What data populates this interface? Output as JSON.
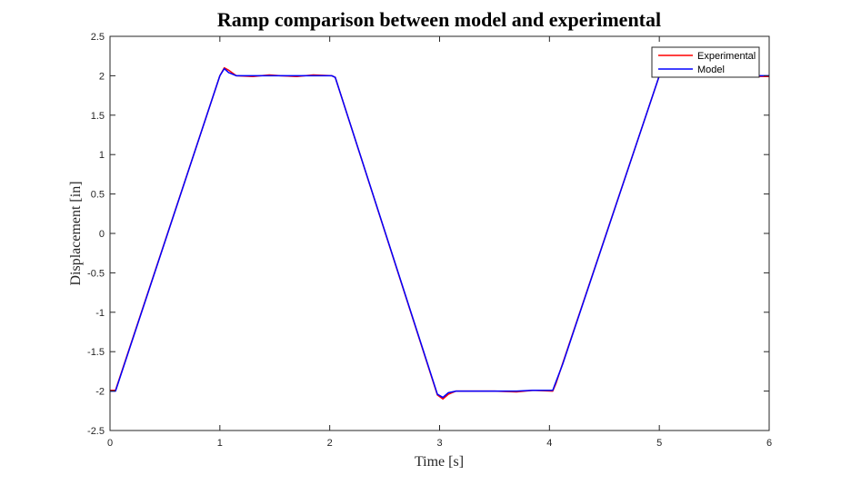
{
  "chart_data": {
    "type": "line",
    "title": "Ramp comparison between model and experimental",
    "xlabel": "Time [s]",
    "ylabel": "Displacement [in]",
    "xlim": [
      0,
      6
    ],
    "ylim": [
      -2.5,
      2.5
    ],
    "xticks": [
      0,
      1,
      2,
      3,
      4,
      5,
      6
    ],
    "xtick_labels": [
      "0",
      "1",
      "2",
      "3",
      "4",
      "5",
      "6"
    ],
    "yticks": [
      -2.5,
      -2,
      -1.5,
      -1,
      -0.5,
      0,
      0.5,
      1,
      1.5,
      2,
      2.5
    ],
    "ytick_labels": [
      "-2.5",
      "-2",
      "-1.5",
      "-1",
      "-0.5",
      "0",
      "0.5",
      "1",
      "1.5",
      "2",
      "2.5"
    ],
    "grid": false,
    "legend_position": "top-right",
    "series": [
      {
        "name": "Experimental",
        "color": "#ff0000",
        "x": [
          0,
          0.05,
          1.0,
          1.04,
          1.08,
          1.15,
          1.3,
          1.45,
          1.55,
          1.7,
          1.85,
          2.02,
          2.05,
          2.98,
          3.03,
          3.08,
          3.15,
          3.3,
          3.5,
          3.7,
          3.85,
          4.03,
          4.06,
          4.12,
          5.0,
          5.5,
          6.0
        ],
        "y": [
          -1.99,
          -1.99,
          2.0,
          2.1,
          2.07,
          2.0,
          1.99,
          2.01,
          2.0,
          1.99,
          2.01,
          2.0,
          1.98,
          -2.05,
          -2.1,
          -2.04,
          -2.0,
          -2.0,
          -2.0,
          -2.01,
          -1.99,
          -2.0,
          -1.9,
          -1.65,
          2.0,
          2.0,
          1.99
        ]
      },
      {
        "name": "Model",
        "color": "#0000ff",
        "x": [
          0,
          0.05,
          1.0,
          1.04,
          1.08,
          1.15,
          1.3,
          1.5,
          1.7,
          1.85,
          2.02,
          2.05,
          2.98,
          3.03,
          3.08,
          3.15,
          3.3,
          3.5,
          3.7,
          3.85,
          4.03,
          4.06,
          4.12,
          5.0,
          5.5,
          6.0
        ],
        "y": [
          -2.0,
          -2.0,
          2.0,
          2.09,
          2.04,
          2.0,
          2.0,
          2.0,
          2.0,
          2.0,
          2.0,
          1.98,
          -2.04,
          -2.08,
          -2.02,
          -2.0,
          -2.0,
          -2.0,
          -2.0,
          -1.99,
          -1.99,
          -1.88,
          -1.66,
          2.0,
          2.0,
          2.0
        ]
      }
    ]
  }
}
